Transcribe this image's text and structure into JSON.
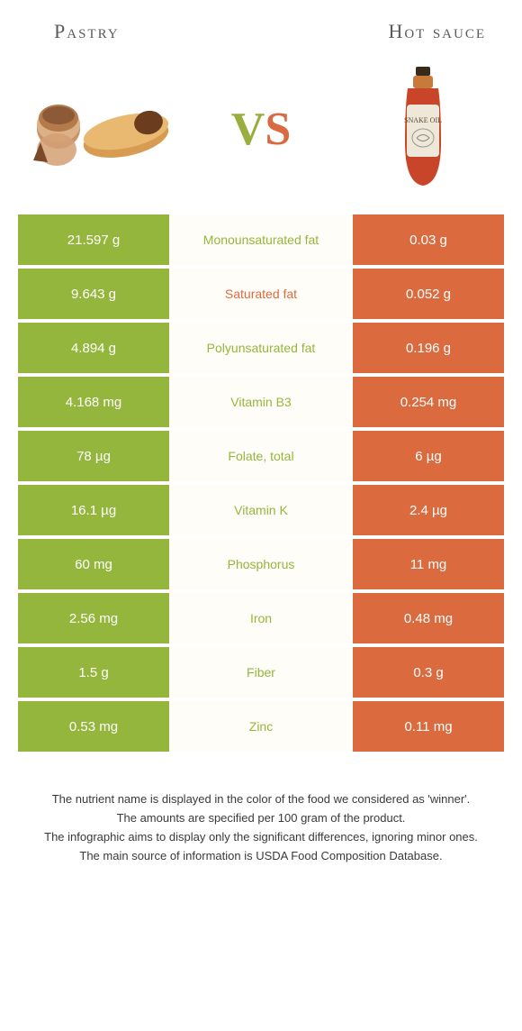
{
  "header": {
    "left_title": "Pastry",
    "right_title": "Hot sauce"
  },
  "vs": {
    "v": "V",
    "s": "S"
  },
  "colors": {
    "left_bg": "#95b63d",
    "right_bg": "#db6b3e",
    "mid_bg": "#fefdf7",
    "page_bg": "#ffffff",
    "text_white": "#ffffff",
    "title_color": "#5a5a5a"
  },
  "rows": [
    {
      "left": "21.597 g",
      "label": "Monounsaturated fat",
      "winner": "left",
      "right": "0.03 g"
    },
    {
      "left": "9.643 g",
      "label": "Saturated fat",
      "winner": "right",
      "right": "0.052 g"
    },
    {
      "left": "4.894 g",
      "label": "Polyunsaturated fat",
      "winner": "left",
      "right": "0.196 g"
    },
    {
      "left": "4.168 mg",
      "label": "Vitamin B3",
      "winner": "left",
      "right": "0.254 mg"
    },
    {
      "left": "78 µg",
      "label": "Folate, total",
      "winner": "left",
      "right": "6 µg"
    },
    {
      "left": "16.1 µg",
      "label": "Vitamin K",
      "winner": "left",
      "right": "2.4 µg"
    },
    {
      "left": "60 mg",
      "label": "Phosphorus",
      "winner": "left",
      "right": "11 mg"
    },
    {
      "left": "2.56 mg",
      "label": "Iron",
      "winner": "left",
      "right": "0.48 mg"
    },
    {
      "left": "1.5 g",
      "label": "Fiber",
      "winner": "left",
      "right": "0.3 g"
    },
    {
      "left": "0.53 mg",
      "label": "Zinc",
      "winner": "left",
      "right": "0.11 mg"
    }
  ],
  "footer": {
    "line1": "The nutrient name is displayed in the color of the food we considered as 'winner'.",
    "line2": "The amounts are specified per 100 gram of the product.",
    "line3": "The infographic aims to display only the significant differences, ignoring minor ones.",
    "line4": "The main source of information is USDA Food Composition Database."
  },
  "images": {
    "left_alt": "pastry-icon",
    "right_alt": "hot-sauce-bottle-icon"
  }
}
